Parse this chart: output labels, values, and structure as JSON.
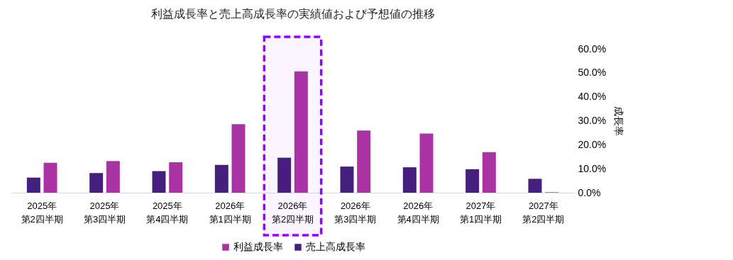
{
  "chart_data": {
    "type": "bar",
    "title": "利益成長率と売上高成長率の実績値および予想値の推移",
    "ylabel": "成長率",
    "categories": [
      "2025年第2四半期",
      "2025年第3四半期",
      "2025年第4四半期",
      "2026年第1四半期",
      "2026年第2四半期",
      "2026年第3四半期",
      "2026年第4四半期",
      "2027年第1四半期",
      "2027年第2四半期"
    ],
    "series": [
      {
        "name": "利益成長率",
        "color": "#aa33a3",
        "values": [
          12.5,
          13.2,
          12.7,
          28.6,
          50.6,
          25.9,
          24.7,
          16.9,
          0.2
        ]
      },
      {
        "name": "売上高成長率",
        "color": "#46207e",
        "values": [
          6.3,
          8.2,
          9.0,
          11.6,
          14.6,
          10.9,
          10.6,
          9.8,
          5.8
        ]
      }
    ],
    "ylim": [
      0,
      60
    ],
    "yticks": [
      {
        "value": 0,
        "label": "0.0%"
      },
      {
        "value": 10,
        "label": "10.0%"
      },
      {
        "value": 20,
        "label": "20.0%"
      },
      {
        "value": 30,
        "label": "30.0%"
      },
      {
        "value": 40,
        "label": "40.0%"
      },
      {
        "value": 50,
        "label": "50.0%"
      },
      {
        "value": 60,
        "label": "60.0%"
      }
    ],
    "bands": [
      {
        "axis": "x",
        "from": "2026年第2四半期",
        "to": "2026年第2四半期",
        "color": "#9900ff"
      }
    ],
    "grid": false,
    "legend": "bottom"
  }
}
